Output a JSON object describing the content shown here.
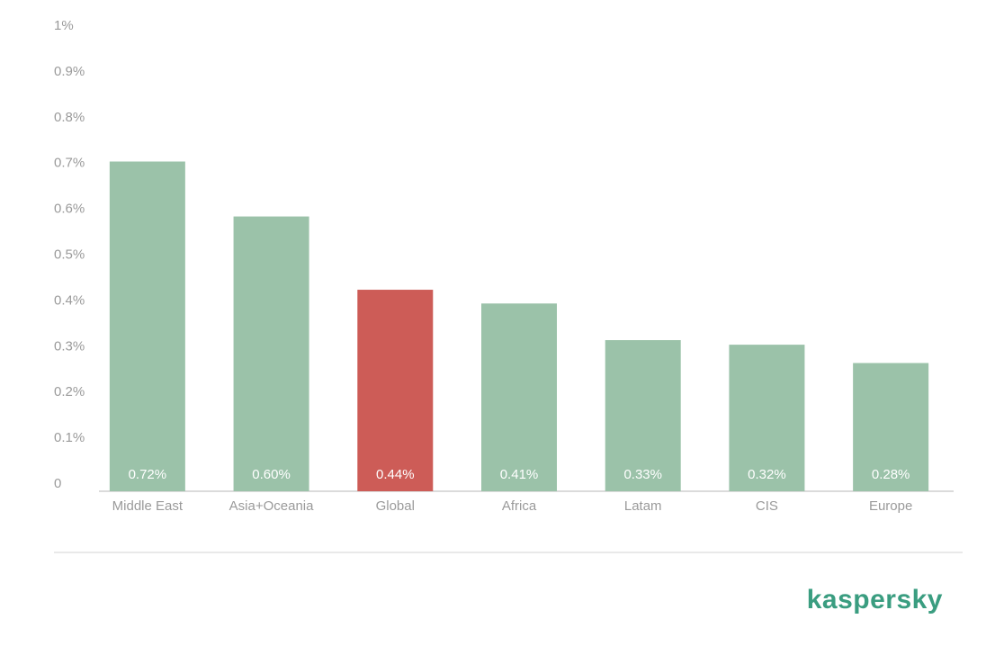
{
  "chart_data": {
    "type": "bar",
    "categories": [
      "Middle East",
      "Asia+Oceania",
      "Global",
      "Africa",
      "Latam",
      "CIS",
      "Europe"
    ],
    "values": [
      0.72,
      0.6,
      0.44,
      0.41,
      0.33,
      0.32,
      0.28
    ],
    "value_labels": [
      "0.72%",
      "0.60%",
      "0.44%",
      "0.41%",
      "0.33%",
      "0.32%",
      "0.28%"
    ],
    "colors": [
      "#9bc2a9",
      "#9bc2a9",
      "#cd5c57",
      "#9bc2a9",
      "#9bc2a9",
      "#9bc2a9",
      "#9bc2a9"
    ],
    "ylim": [
      0,
      1
    ],
    "yticks": [
      0,
      {
        "value": 0.1,
        "label": "0.1%"
      },
      {
        "value": 0.2,
        "label": "0.2%"
      },
      {
        "value": 0.3,
        "label": "0.3%"
      },
      {
        "value": 0.4,
        "label": "0.4%"
      },
      {
        "value": 0.5,
        "label": "0.5%"
      },
      {
        "value": 0.6,
        "label": "0.6%"
      },
      {
        "value": 0.7,
        "label": "0.7%"
      },
      {
        "value": 0.8,
        "label": "0.8%"
      },
      {
        "value": 0.9,
        "label": "0.9%"
      },
      {
        "value": 1,
        "label": "1%"
      }
    ],
    "grid": false
  },
  "logo": "kaspersky"
}
